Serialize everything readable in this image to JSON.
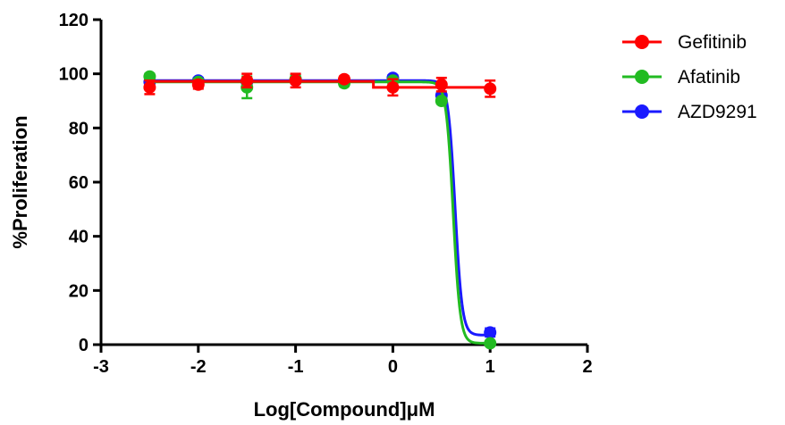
{
  "chart_data": {
    "type": "scatter",
    "xlabel": "Log[Compound]μM",
    "ylabel": "%Proliferation",
    "xlim": [
      -3,
      2
    ],
    "ylim": [
      0,
      120
    ],
    "xticks": [
      -3,
      -2,
      -1,
      0,
      1,
      2
    ],
    "yticks": [
      0,
      20,
      40,
      60,
      80,
      100,
      120
    ],
    "xtick_labels": [
      "-3",
      "-2",
      "-1",
      "0",
      "1",
      "2"
    ],
    "ytick_labels": [
      "0",
      "20",
      "40",
      "60",
      "80",
      "100",
      "120"
    ],
    "grid": false,
    "legend_position": "top-right",
    "series": [
      {
        "name": "Gefitinib",
        "color": "#ff0000",
        "x": [
          -2.5,
          -2,
          -1.5,
          -1,
          -0.5,
          0,
          0.5,
          1
        ],
        "y": [
          95,
          96,
          97.5,
          97.5,
          98,
          95,
          96,
          94.5
        ],
        "err": [
          2.5,
          1.5,
          2.5,
          2.5,
          1,
          3,
          2.5,
          3
        ],
        "fit": {
          "type": "step",
          "top": 97.2,
          "bottom": 95,
          "log_ic50": -0.2
        }
      },
      {
        "name": "Afatinib",
        "color": "#22bb22",
        "x": [
          -2.5,
          -2,
          -1.5,
          -1,
          -0.5,
          0,
          0.5,
          1
        ],
        "y": [
          99,
          97,
          95,
          98,
          96.5,
          97.5,
          90,
          0.5
        ],
        "err": [
          1,
          1,
          4,
          1.5,
          1,
          1,
          1,
          0.5
        ],
        "fit": {
          "type": "sigmoid",
          "top": 97,
          "bottom": 0.5,
          "log_ic50": 0.62,
          "hill": -12
        }
      },
      {
        "name": "AZD9291",
        "color": "#1a1aff",
        "x": [
          -2.5,
          -2,
          -1.5,
          -1,
          -0.5,
          0,
          0.5,
          1
        ],
        "y": [
          97,
          97.5,
          97,
          97.5,
          97,
          98.5,
          92,
          4.5
        ],
        "err": [
          1,
          1,
          1,
          1,
          1,
          1,
          1,
          1.5
        ],
        "fit": {
          "type": "sigmoid",
          "top": 97.5,
          "bottom": 3.5,
          "log_ic50": 0.64,
          "hill": -12
        }
      }
    ]
  }
}
